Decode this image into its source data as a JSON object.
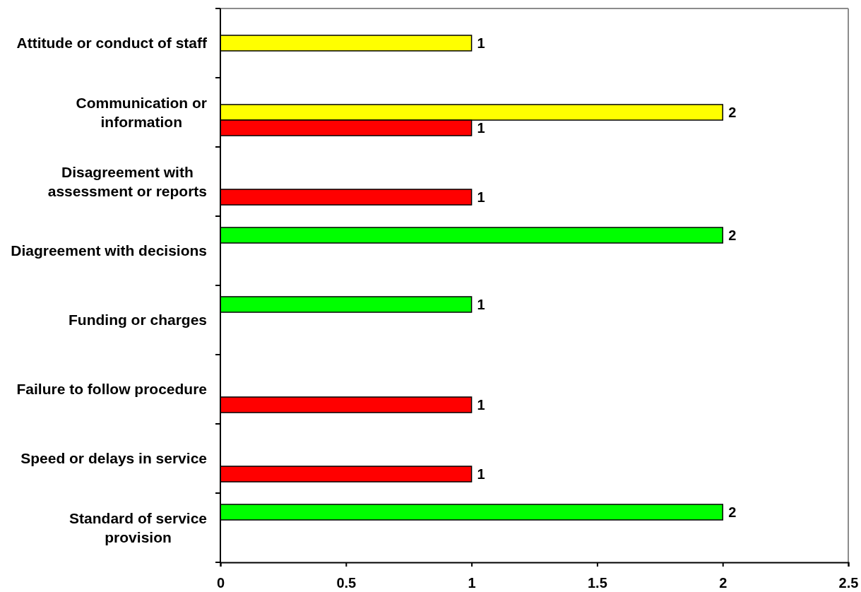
{
  "chart_data": {
    "type": "bar",
    "orientation": "horizontal",
    "categories": [
      "Attitude or conduct of staff",
      "Communication or information",
      "Disagreement with assessment or reports",
      "Diagreement with decisions",
      "Funding or charges",
      "Failure to follow procedure",
      "Speed or delays in service",
      "Standard of service provision"
    ],
    "series": [
      {
        "color": "#00ff00",
        "values": [
          null,
          null,
          null,
          2,
          1,
          null,
          null,
          2
        ]
      },
      {
        "color": "#ffff00",
        "values": [
          1,
          2,
          null,
          null,
          null,
          null,
          null,
          null
        ]
      },
      {
        "color": "#ff0000",
        "values": [
          null,
          1,
          1,
          null,
          null,
          1,
          1,
          null
        ]
      }
    ],
    "xlim": [
      0,
      2.5
    ],
    "xticks": [
      0,
      0.5,
      1,
      1.5,
      2,
      2.5
    ],
    "data_labels": true
  }
}
